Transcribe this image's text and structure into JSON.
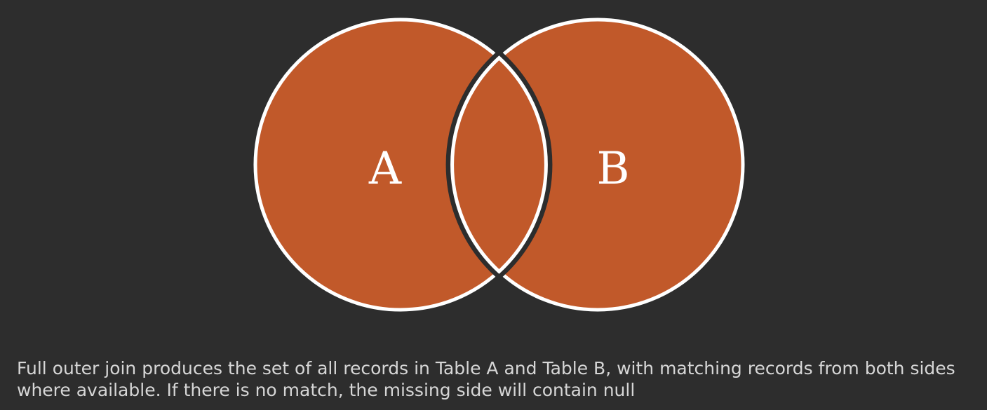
{
  "diagram": {
    "type": "venn",
    "operation": "full-outer-join",
    "sets": [
      {
        "label": "A"
      },
      {
        "label": "B"
      }
    ],
    "intersection_highlighted": true,
    "colors": {
      "background": "#2d2d2d",
      "fill": "#c1592a",
      "stroke": "#ffffff",
      "caption": "#d6d6d6"
    }
  },
  "caption": {
    "text": "Full outer join produces the set of all records in Table A and Table B, with matching records from both sides where available. If there is no match, the missing side will contain null"
  }
}
